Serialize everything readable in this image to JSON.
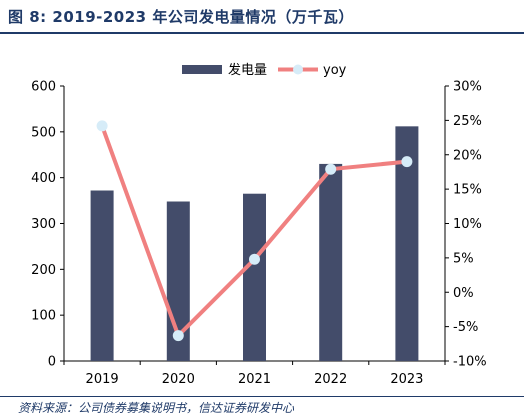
{
  "figure": {
    "title": "图 8:  2019-2023 年公司发电量情况（万千瓦）",
    "source": "资料来源：公司债券募集说明书，信达证券研发中心"
  },
  "chart_data": {
    "type": "bar",
    "categories": [
      "2019",
      "2020",
      "2021",
      "2022",
      "2023"
    ],
    "series": [
      {
        "name": "发电量",
        "type": "bar",
        "axis": "left",
        "values": [
          372,
          348,
          365,
          430,
          512
        ],
        "color": "#434c6a"
      },
      {
        "name": "yoy",
        "type": "line",
        "axis": "right",
        "values": [
          24.2,
          -6.3,
          4.8,
          17.9,
          19.0
        ],
        "color": "#f08080",
        "marker_color": "#d6ecf8"
      }
    ],
    "y_left": {
      "min": 0,
      "max": 600,
      "ticks": [
        "0",
        "100",
        "200",
        "300",
        "400",
        "500",
        "600"
      ]
    },
    "y_right": {
      "min": -10,
      "max": 30,
      "ticks": [
        "-10%",
        "-5%",
        "0%",
        "5%",
        "10%",
        "15%",
        "20%",
        "25%",
        "30%"
      ]
    },
    "legend": {
      "position": "top-center"
    },
    "grid": false
  }
}
